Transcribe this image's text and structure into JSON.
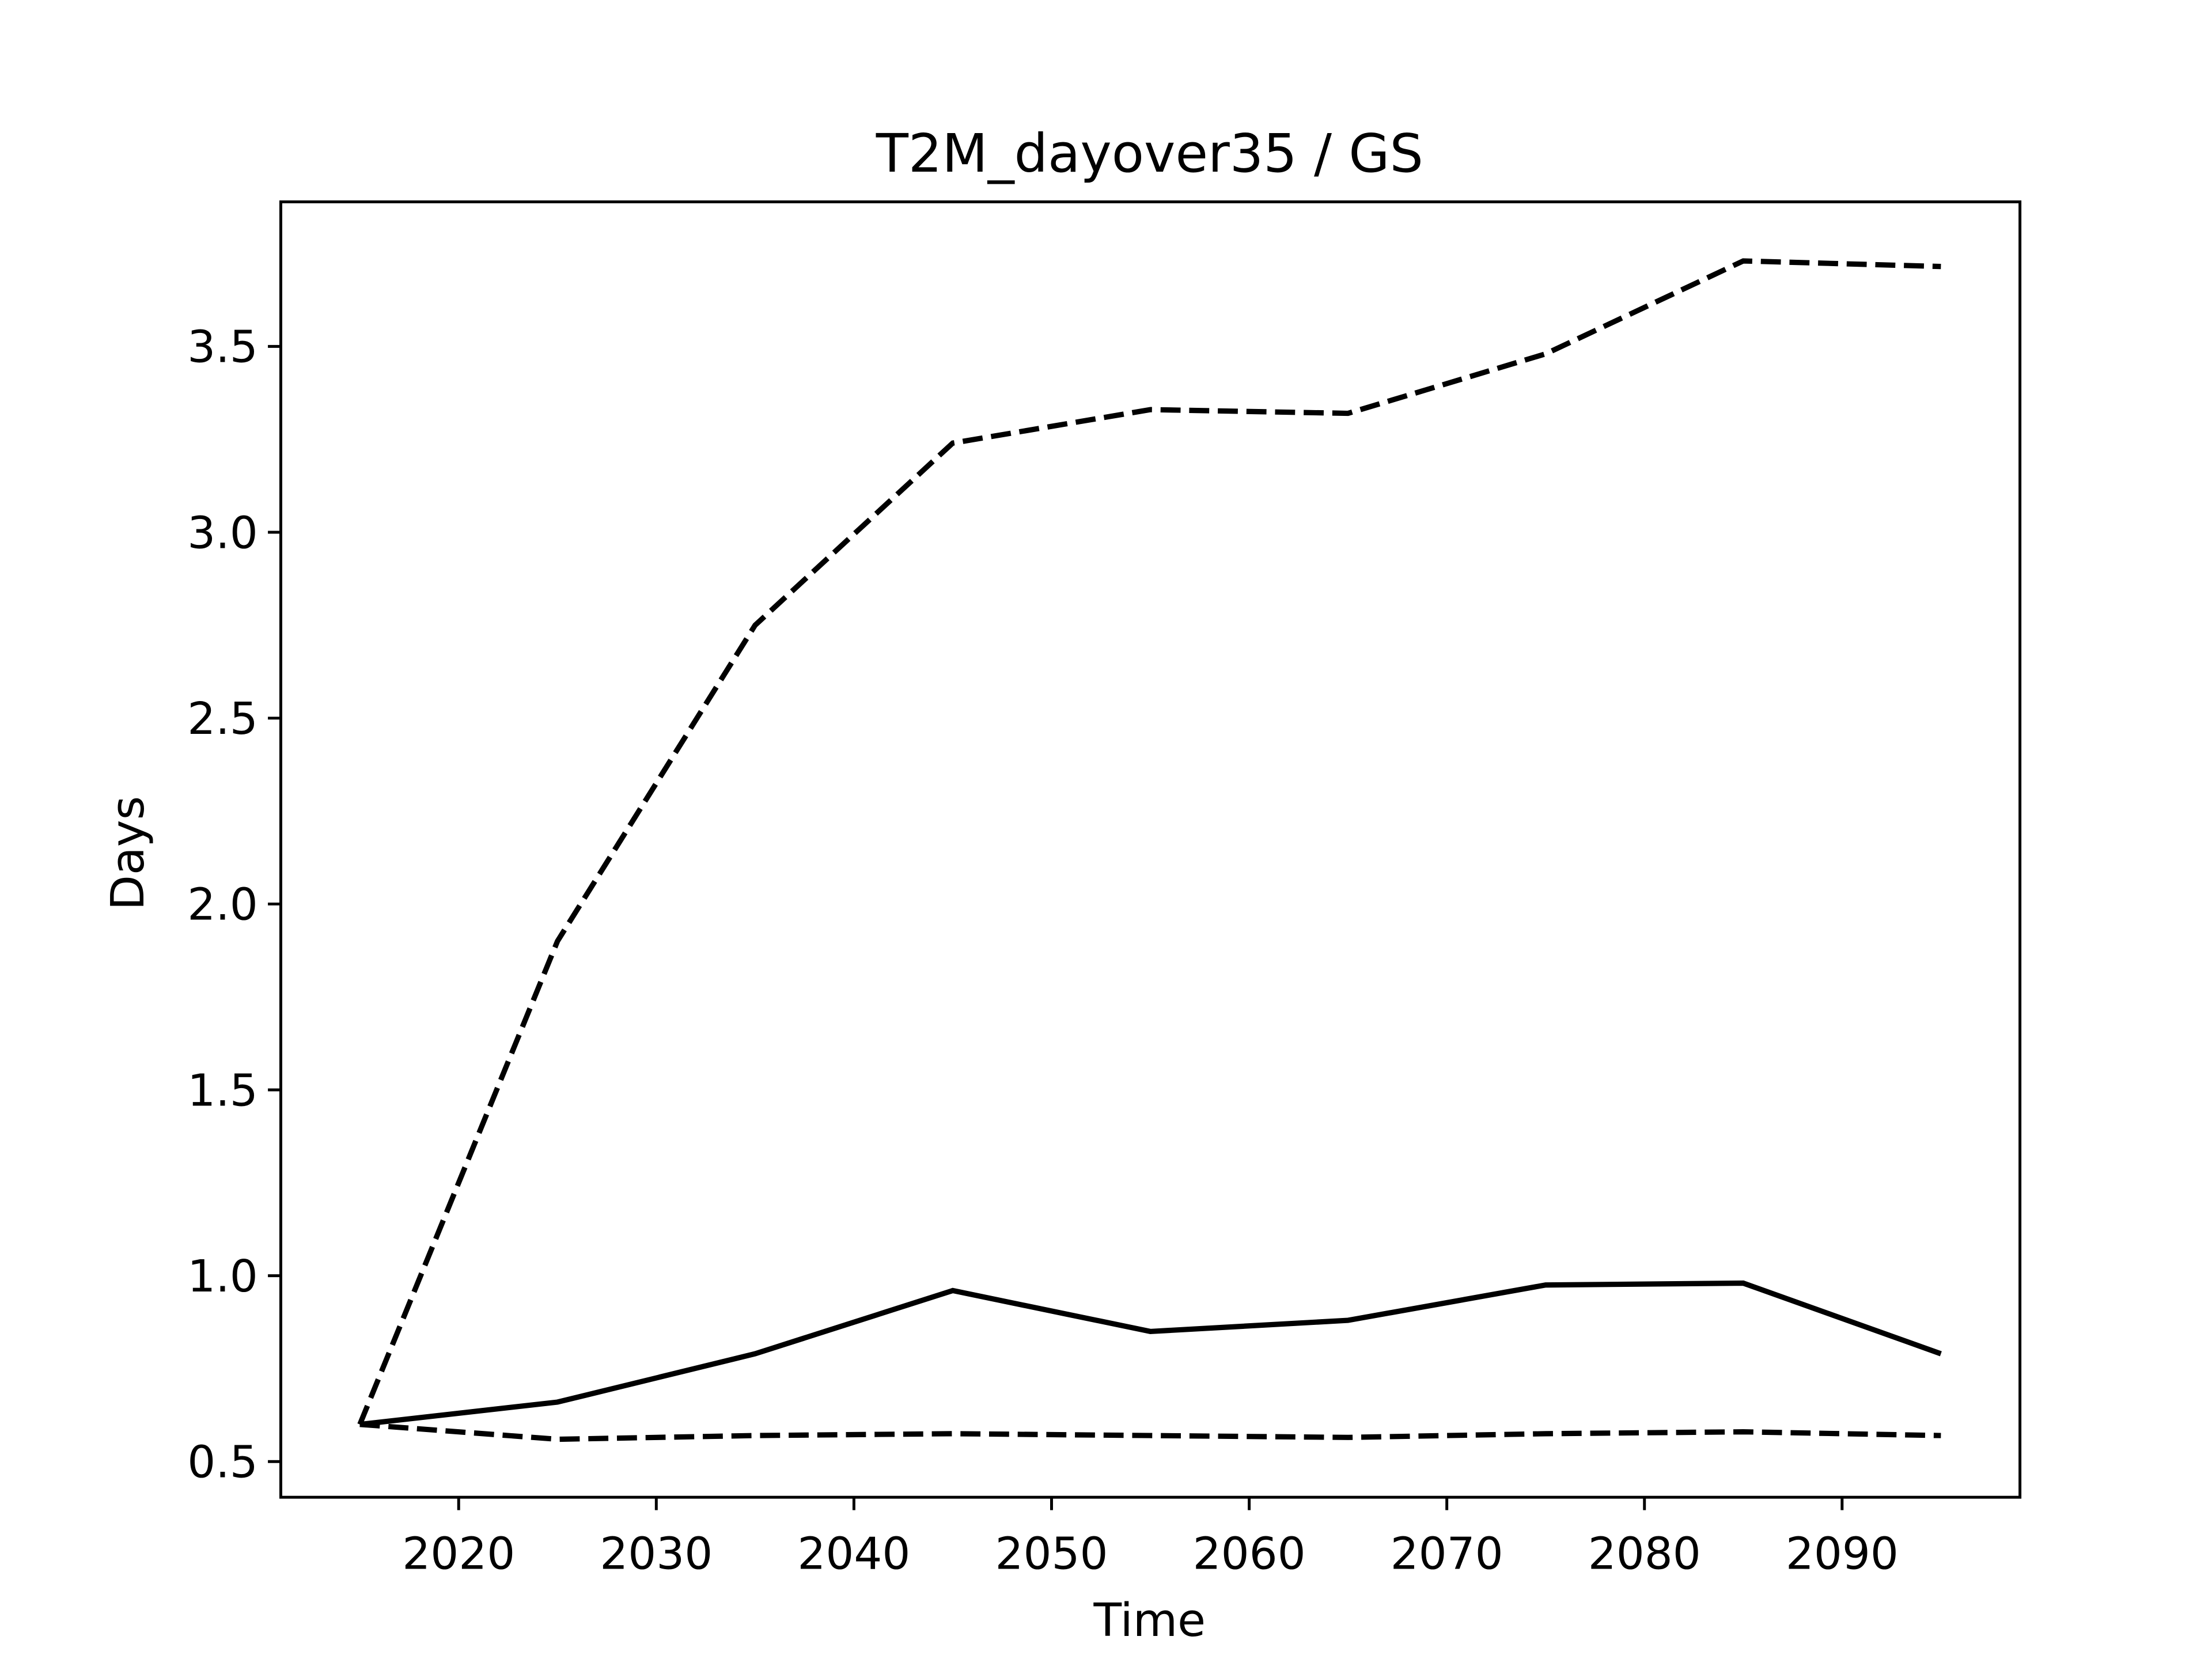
{
  "chart_data": {
    "type": "line",
    "title": "T2M_dayover35 / GS",
    "x_label": "Time",
    "y_label": "Days",
    "x": [
      2015,
      2025,
      2035,
      2045,
      2055,
      2065,
      2075,
      2085,
      2095
    ],
    "series": [
      {
        "color": "#000000",
        "linestyle": "solid",
        "values": [
          0.6,
          0.66,
          0.79,
          0.96,
          0.85,
          0.88,
          0.975,
          0.98,
          0.79
        ]
      },
      {
        "color": "#000000",
        "linestyle": "dashed",
        "values": [
          0.6,
          1.9,
          2.75,
          3.24,
          3.33,
          3.32,
          3.48,
          3.73,
          3.715
        ]
      },
      {
        "color": "#000000",
        "linestyle": "dashed",
        "values": [
          0.6,
          0.56,
          0.57,
          0.575,
          0.57,
          0.565,
          0.575,
          0.58,
          0.57
        ]
      }
    ],
    "xlim": [
      2011,
      2099
    ],
    "ylim": [
      0.404,
      3.889
    ],
    "xticks": [
      2020,
      2030,
      2040,
      2050,
      2060,
      2070,
      2080,
      2090
    ],
    "yticks": [
      0.5,
      {
        "value": 1,
        "label": "1.0"
      },
      1.5,
      {
        "value": 2,
        "label": "2.0"
      },
      2.5,
      {
        "value": 3,
        "label": "3.0"
      },
      3.5
    ],
    "grid": false
  }
}
